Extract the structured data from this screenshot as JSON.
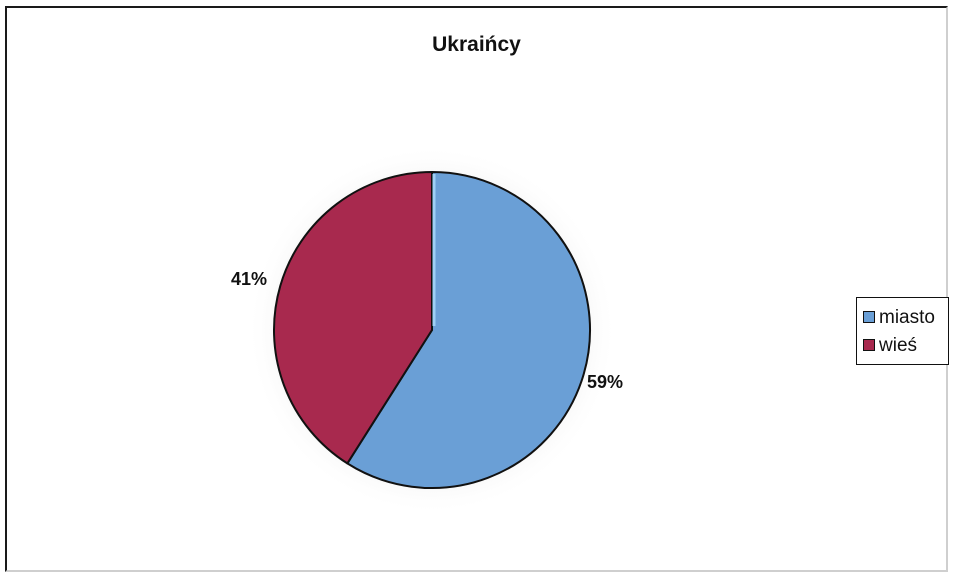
{
  "chart_data": {
    "type": "pie",
    "title": "Ukraińcy",
    "categories": [
      "miasto",
      "wieś"
    ],
    "values": [
      59,
      41
    ],
    "data_labels": [
      "59%",
      "41%"
    ],
    "colors": [
      "#6a9fd6",
      "#a8294e"
    ],
    "legend_position": "right",
    "legend": [
      {
        "label": "miasto",
        "color": "#6a9fd6"
      },
      {
        "label": "wieś",
        "color": "#a8294e"
      }
    ]
  }
}
